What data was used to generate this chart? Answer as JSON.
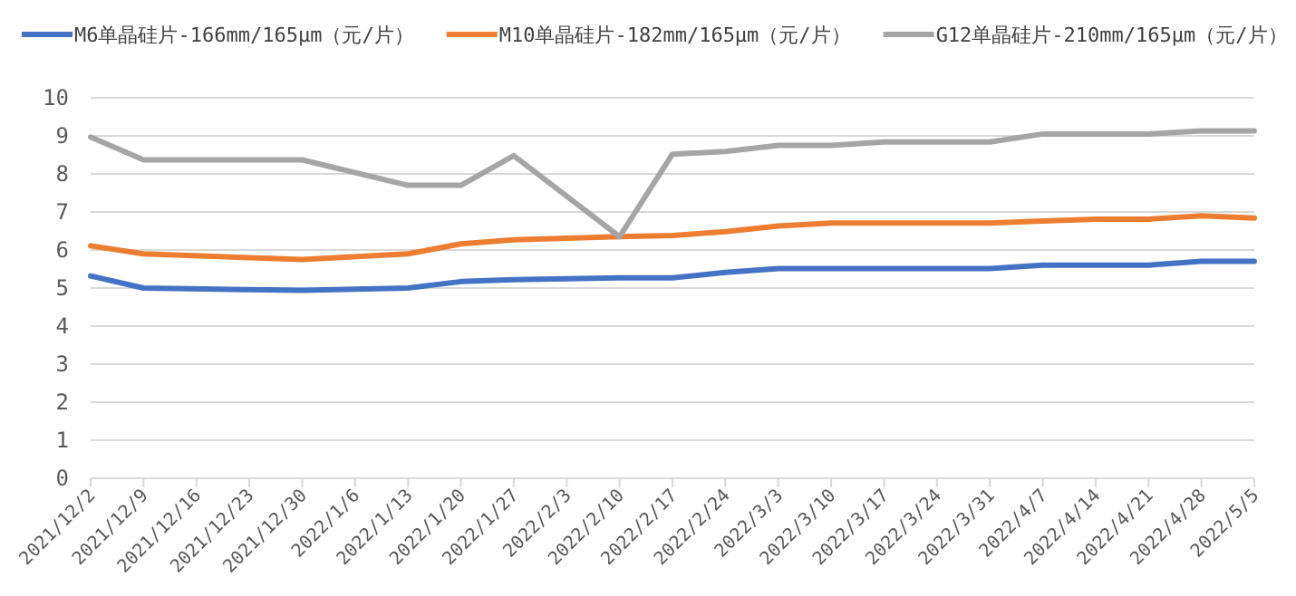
{
  "chart_data": {
    "type": "line",
    "xlim": [
      "2021-12-02",
      "2022-05-05"
    ],
    "xticks": [
      {
        "value": "2021-12-02",
        "label": "2021/12/2"
      },
      {
        "value": "2021-12-09",
        "label": "2021/12/9"
      },
      {
        "value": "2021-12-16",
        "label": "2021/12/16"
      },
      {
        "value": "2021-12-23",
        "label": "2021/12/23"
      },
      {
        "value": "2021-12-30",
        "label": "2021/12/30"
      },
      {
        "value": "2022-01-06",
        "label": "2022/1/6"
      },
      {
        "value": "2022-01-13",
        "label": "2022/1/13"
      },
      {
        "value": "2022-01-20",
        "label": "2022/1/20"
      },
      {
        "value": "2022-01-27",
        "label": "2022/1/27"
      },
      {
        "value": "2022-02-03",
        "label": "2022/2/3"
      },
      {
        "value": "2022-02-10",
        "label": "2022/2/10"
      },
      {
        "value": "2022-02-17",
        "label": "2022/2/17"
      },
      {
        "value": "2022-02-24",
        "label": "2022/2/24"
      },
      {
        "value": "2022-03-03",
        "label": "2022/3/3"
      },
      {
        "value": "2022-03-10",
        "label": "2022/3/10"
      },
      {
        "value": "2022-03-17",
        "label": "2022/3/17"
      },
      {
        "value": "2022-03-24",
        "label": "2022/3/24"
      },
      {
        "value": "2022-03-31",
        "label": "2022/3/31"
      },
      {
        "value": "2022-04-07",
        "label": "2022/4/7"
      },
      {
        "value": "2022-04-14",
        "label": "2022/4/14"
      },
      {
        "value": "2022-04-21",
        "label": "2022/4/21"
      },
      {
        "value": "2022-04-28",
        "label": "2022/4/28"
      },
      {
        "value": "2022-05-05",
        "label": "2022/5/5"
      }
    ],
    "x": [
      "2021-12-02",
      "2021-12-09",
      "2021-12-30",
      "2022-01-13",
      "2022-01-20",
      "2022-01-27",
      "2022-02-10",
      "2022-02-17",
      "2022-02-24",
      "2022-03-03",
      "2022-03-10",
      "2022-03-17",
      "2022-03-24",
      "2022-03-31",
      "2022-04-07",
      "2022-04-14",
      "2022-04-21",
      "2022-04-28",
      "2022-05-05"
    ],
    "ylim": [
      0,
      10
    ],
    "yticks": [
      0,
      1,
      2,
      3,
      4,
      5,
      6,
      7,
      8,
      9,
      10
    ],
    "grid": "y",
    "legend": "top",
    "marker": "none",
    "line_style": "solid",
    "series": [
      {
        "name": "M6单晶硅片-166mm/165μm（元/片）",
        "color": "#4472c4",
        "values": [
          5.32,
          5.0,
          4.94,
          5.0,
          5.17,
          5.22,
          5.27,
          5.27,
          5.41,
          5.51,
          5.51,
          5.51,
          5.51,
          5.51,
          5.6,
          5.6,
          5.6,
          5.7,
          5.7
        ]
      },
      {
        "name": "M10单晶硅片-182mm/165μm（元/片）",
        "color": "#ed7d31",
        "values": [
          6.11,
          5.9,
          5.75,
          5.9,
          6.16,
          6.27,
          6.35,
          6.38,
          6.48,
          6.63,
          6.71,
          6.71,
          6.71,
          6.71,
          6.76,
          6.81,
          6.81,
          6.9,
          6.84
        ]
      },
      {
        "name": "G12单晶硅片-210mm/165μm（元/片）",
        "color": "#a5a5a5",
        "values": [
          8.97,
          8.37,
          8.37,
          7.7,
          7.7,
          8.48,
          6.35,
          8.52,
          8.59,
          8.75,
          8.75,
          8.84,
          8.84,
          8.84,
          9.05,
          9.05,
          9.05,
          9.13,
          9.13
        ]
      }
    ]
  }
}
